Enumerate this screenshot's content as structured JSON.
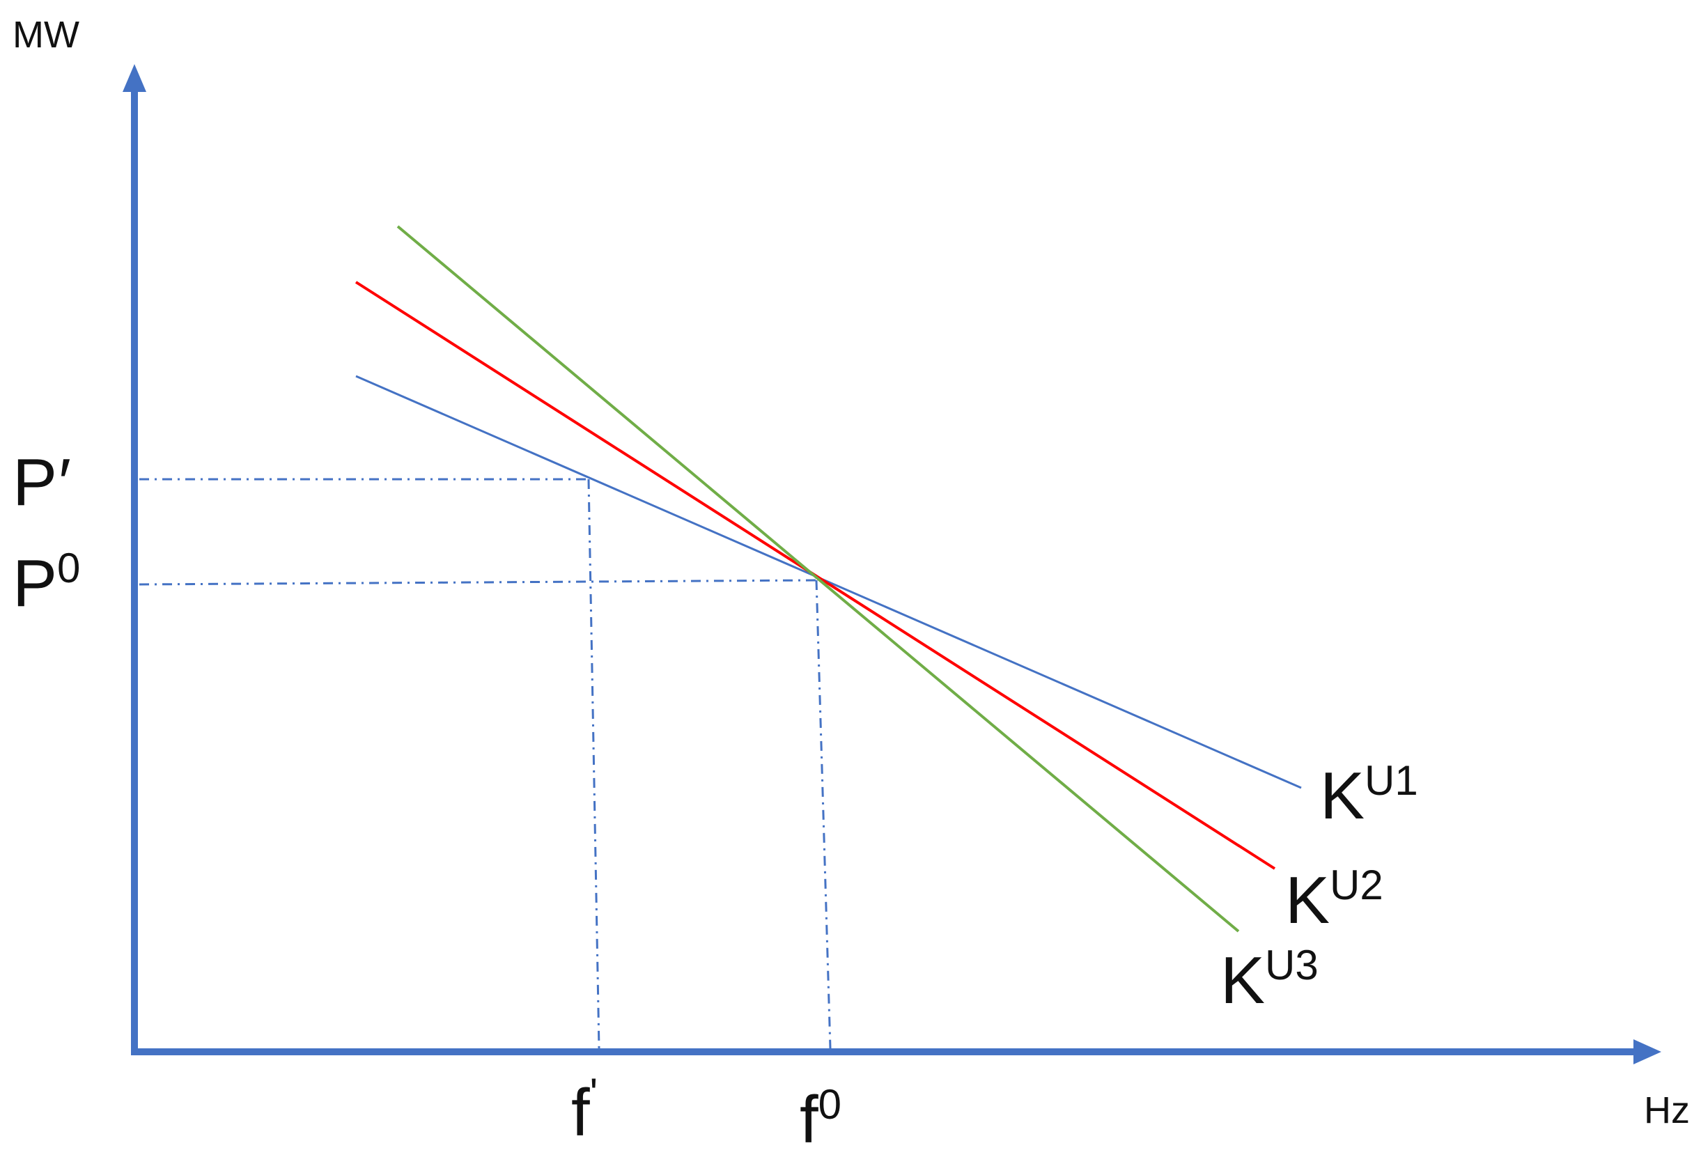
{
  "axes": {
    "y_unit": "MW",
    "x_unit": "Hz",
    "color": "#4472C4"
  },
  "ticks": {
    "p_prime": {
      "base": "P",
      "mark": "′"
    },
    "p0": {
      "base": "P",
      "sup": "0"
    },
    "f_prime": {
      "base": "f",
      "mark": "'"
    },
    "f0": {
      "base": "f",
      "sup": "0"
    }
  },
  "guide_color": "#4472C4",
  "lines": [
    {
      "label_base": "K",
      "label_sup": "U1",
      "color": "#4472C4"
    },
    {
      "label_base": "K",
      "label_sup": "U2",
      "color": "#FF0000"
    },
    {
      "label_base": "K",
      "label_sup": "U3",
      "color": "#70AD47"
    }
  ]
}
